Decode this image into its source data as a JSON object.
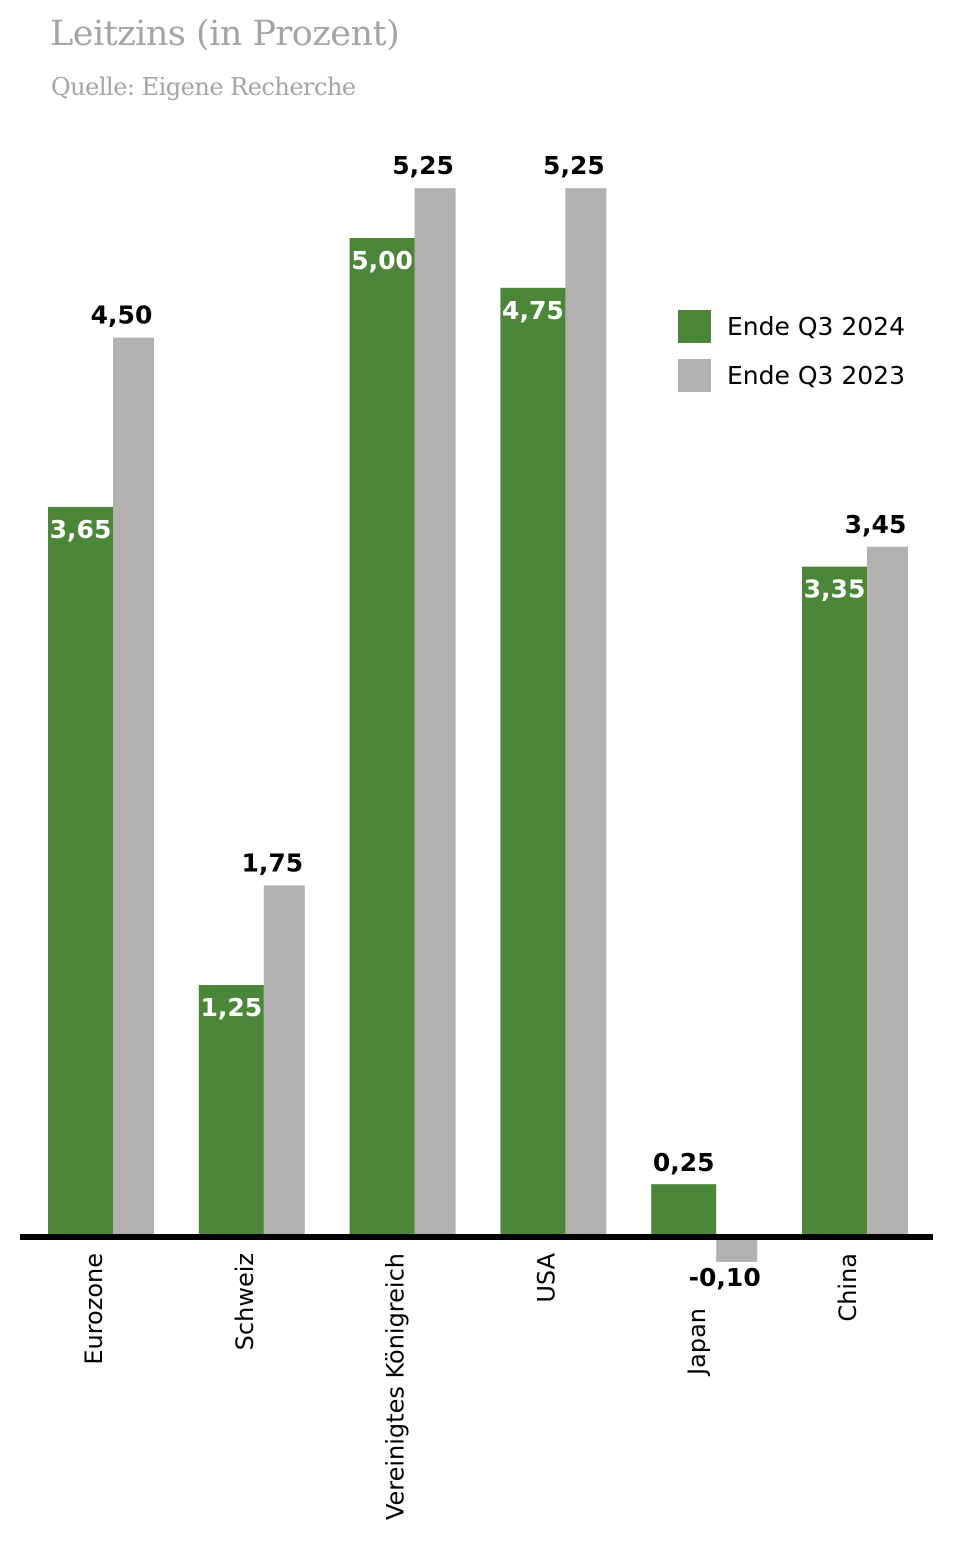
{
  "title": "Leitzins (in Prozent)",
  "subtitle": "Quelle: Eigene Recherche",
  "colors": {
    "series_2024": "#4c8638",
    "series_2023": "#b2b1b0",
    "axis": "#000000"
  },
  "legend": [
    {
      "label": "Ende Q3 2024",
      "color": "#4c8638"
    },
    {
      "label": "Ende Q3 2023",
      "color": "#b2b1b0"
    }
  ],
  "chart_data": {
    "type": "bar",
    "title": "Leitzins (in Prozent)",
    "subtitle": "Quelle: Eigene Recherche",
    "xlabel": "",
    "ylabel": "",
    "grid": false,
    "legend_position": "top-right",
    "ylim": [
      -0.1,
      5.25
    ],
    "categories": [
      "Eurozone",
      "Schweiz",
      "Vereinigtes Königreich",
      "USA",
      "Japan",
      "China"
    ],
    "series": [
      {
        "name": "Ende Q3 2024",
        "values": [
          3.65,
          1.25,
          5.0,
          4.75,
          0.25,
          3.35
        ],
        "labels": [
          "3,65",
          "1,25",
          "5,00",
          "4,75",
          "0,25",
          "3,35"
        ]
      },
      {
        "name": "Ende Q3 2023",
        "values": [
          4.5,
          1.75,
          5.25,
          5.25,
          -0.1,
          3.45
        ],
        "labels": [
          "4,50",
          "1,75",
          "5,25",
          "5,25",
          "-0,10",
          "3,45"
        ]
      }
    ]
  }
}
